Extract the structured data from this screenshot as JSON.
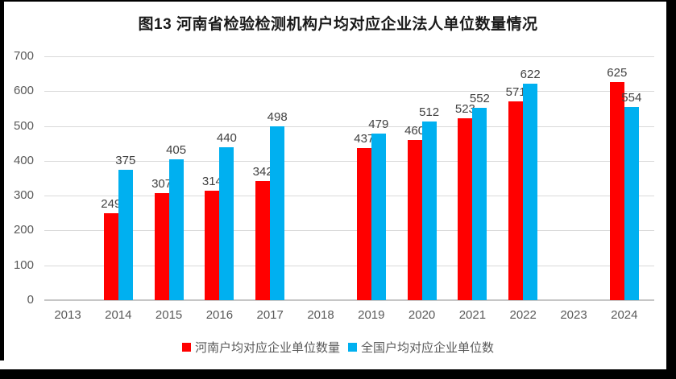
{
  "title": "图13 河南省检验检测机构户均对应企业法人单位数量情况",
  "legend": [
    {
      "label": "河南户均对应企业单位数量",
      "color": "#ff0000"
    },
    {
      "label": "全国户均对应企业单位数",
      "color": "#00b0f0"
    }
  ],
  "colors": {
    "henan_series": "#ff0000",
    "national_series": "#00b0f0",
    "gridline": "#d9d9d9",
    "axis_line": "#c6c6c6",
    "tick_text": "#595959",
    "data_label_text": "#404040",
    "frame": "#000000"
  },
  "chart_data": {
    "type": "bar",
    "title": "图13 河南省检验检测机构户均对应企业法人单位数量情况",
    "categories": [
      "2013",
      "2014",
      "2015",
      "2016",
      "2017",
      "2018",
      "2019",
      "2020",
      "2021",
      "2022",
      "2023",
      "2024"
    ],
    "series": [
      {
        "name": "河南户均对应企业单位数量",
        "key": "henan",
        "color": "#ff0000",
        "values": [
          null,
          249,
          307,
          314,
          342,
          null,
          437,
          460,
          523,
          571,
          null,
          625
        ]
      },
      {
        "name": "全国户均对应企业单位数",
        "key": "national",
        "color": "#00b0f0",
        "values": [
          null,
          375,
          405,
          440,
          498,
          null,
          479,
          512,
          552,
          622,
          null,
          554
        ]
      }
    ],
    "xlabel": "",
    "ylabel": "",
    "ylim": [
      0,
      700
    ],
    "yticks": [
      0,
      100,
      200,
      300,
      400,
      500,
      600,
      700
    ],
    "grid": true,
    "data_labels": true,
    "legend_position": "bottom"
  }
}
